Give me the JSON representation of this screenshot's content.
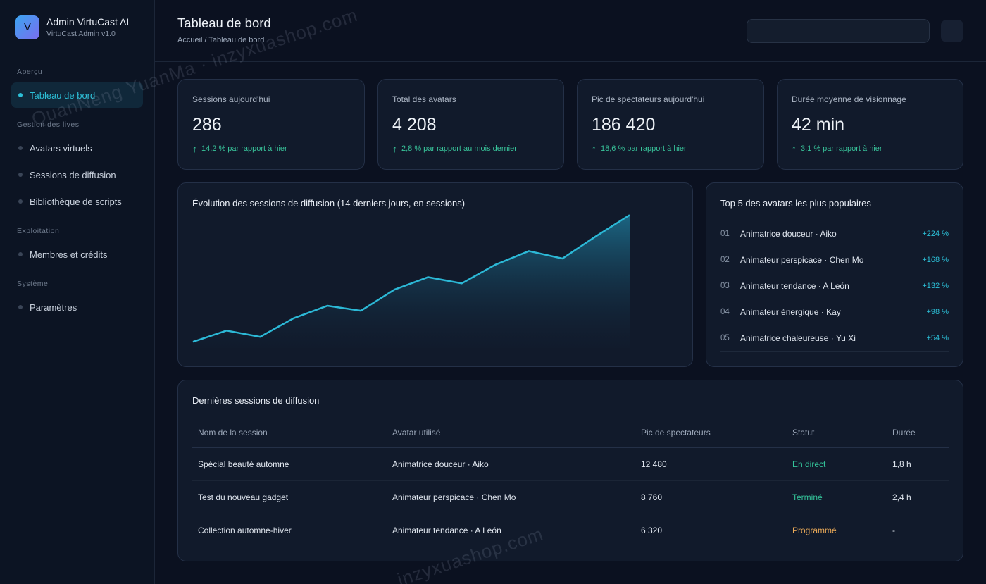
{
  "app": {
    "name": "Admin VirtuCast AI",
    "version": "VirtuCast Admin v1.0",
    "logo_letter": "V"
  },
  "sidebar": {
    "sections": [
      {
        "title": "Aperçu",
        "items": [
          {
            "label": "Tableau de bord",
            "active": true
          }
        ]
      },
      {
        "title": "Gestion des lives",
        "items": [
          {
            "label": "Avatars virtuels"
          },
          {
            "label": "Sessions de diffusion"
          },
          {
            "label": "Bibliothèque de scripts"
          }
        ]
      },
      {
        "title": "Exploitation",
        "items": [
          {
            "label": "Membres et crédits"
          }
        ]
      },
      {
        "title": "Système",
        "items": [
          {
            "label": "Paramètres"
          }
        ]
      }
    ]
  },
  "header": {
    "title": "Tableau de bord",
    "breadcrumb": "Accueil / Tableau de bord",
    "search_value": ""
  },
  "kpis": [
    {
      "label": "Sessions aujourd'hui",
      "value": "286",
      "trend": "14,2 % par rapport à hier"
    },
    {
      "label": "Total des avatars",
      "value": "4 208",
      "trend": "2,8 % par rapport au mois dernier"
    },
    {
      "label": "Pic de spectateurs aujourd'hui",
      "value": "186 420",
      "trend": "18,6 % par rapport à hier"
    },
    {
      "label": "Durée moyenne de visionnage",
      "value": "42 min",
      "trend": "3,1 % par rapport à hier"
    }
  ],
  "trend_icon": "arrow-up-icon",
  "chart_data": {
    "type": "area",
    "title": "Évolution des sessions de diffusion (14 derniers jours, en sessions)",
    "x": [
      1,
      2,
      3,
      4,
      5,
      6,
      7,
      8,
      9,
      10,
      11,
      12,
      13,
      14
    ],
    "values": [
      5,
      14,
      9,
      24,
      34,
      30,
      47,
      57,
      52,
      67,
      78,
      72,
      90,
      107
    ],
    "ylim": [
      0,
      110
    ],
    "xlabel": "",
    "ylabel": "",
    "grid": false,
    "line_color": "#2cb8d6"
  },
  "top_avatars": {
    "title": "Top 5 des avatars les plus populaires",
    "items": [
      {
        "rank": "01",
        "name": "Animatrice douceur · Aiko",
        "growth": "+224 %"
      },
      {
        "rank": "02",
        "name": "Animateur perspicace · Chen Mo",
        "growth": "+168 %"
      },
      {
        "rank": "03",
        "name": "Animateur tendance · A León",
        "growth": "+132 %"
      },
      {
        "rank": "04",
        "name": "Animateur énergique · Kay",
        "growth": "+98 %"
      },
      {
        "rank": "05",
        "name": "Animatrice chaleureuse · Yu Xi",
        "growth": "+54 %"
      }
    ]
  },
  "sessions_table": {
    "title": "Dernières sessions de diffusion",
    "columns": [
      "Nom de la session",
      "Avatar utilisé",
      "Pic de spectateurs",
      "Statut",
      "Durée"
    ],
    "rows": [
      {
        "name": "Spécial beauté automne",
        "avatar": "Animatrice douceur · Aiko",
        "peak": "12 480",
        "status": "En direct",
        "status_color": "#34c49a",
        "duration": "1,8 h"
      },
      {
        "name": "Test du nouveau gadget",
        "avatar": "Animateur perspicace · Chen Mo",
        "peak": "8 760",
        "status": "Terminé",
        "status_color": "#34c49a",
        "duration": "2,4 h"
      },
      {
        "name": "Collection automne-hiver",
        "avatar": "Animateur tendance · A León",
        "peak": "6 320",
        "status": "Programmé",
        "status_color": "#e8a857",
        "duration": "-"
      }
    ]
  },
  "watermarks": [
    "QuanNeng YuanMa · inzyxuashop.com",
    "inzyxuashop.com"
  ],
  "colors": {
    "accent": "#2cc0d8",
    "positive": "#38c39a",
    "warning": "#e8a857",
    "background": "#0b1120"
  }
}
